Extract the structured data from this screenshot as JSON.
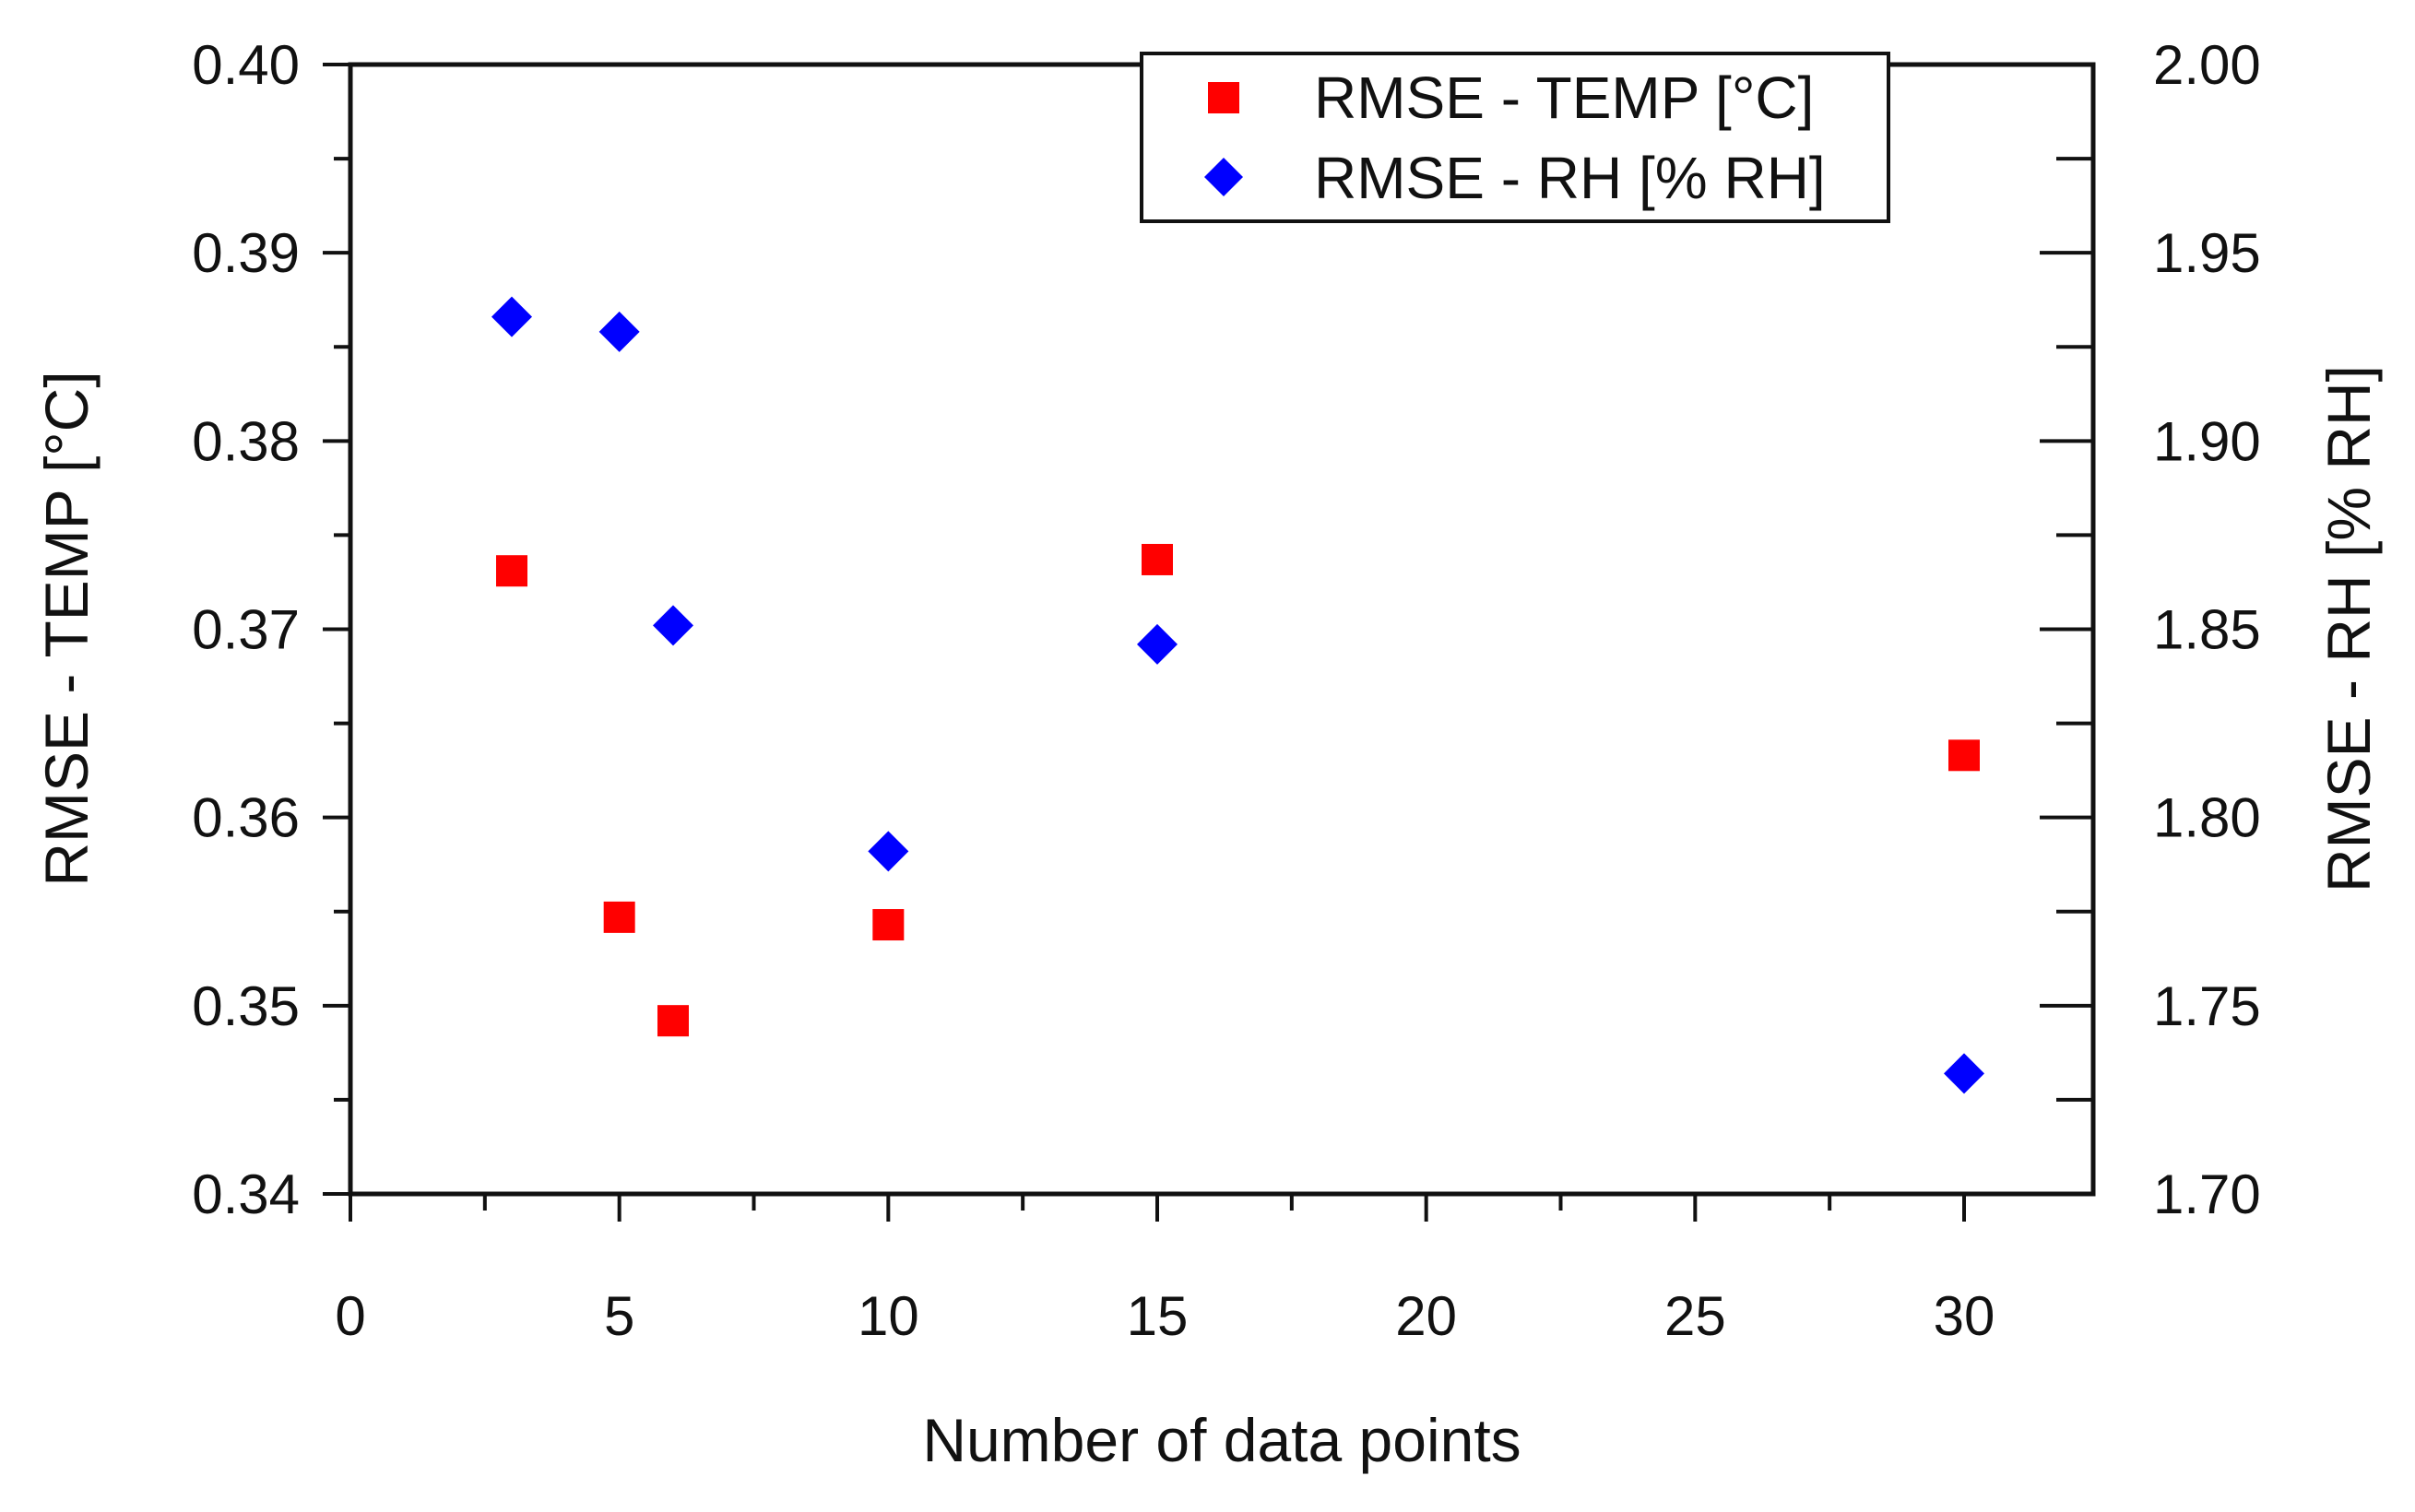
{
  "chart_data": {
    "type": "scatter",
    "xlabel": "Number of data points",
    "ylabel_left": "RMSE - TEMP [°C]",
    "ylabel_right": "RMSE - RH [% RH]",
    "x_range": [
      0,
      32.4
    ],
    "y_left_range": [
      0.34,
      0.4
    ],
    "y_right_range": [
      1.7,
      2.0
    ],
    "x_ticks": [
      "0",
      "5",
      "10",
      "15",
      "20",
      "25",
      "30"
    ],
    "y_left_ticks": [
      "0.34",
      "0.35",
      "0.36",
      "0.37",
      "0.38",
      "0.39",
      "0.40"
    ],
    "y_right_ticks": [
      "1.70",
      "1.75",
      "1.80",
      "1.85",
      "1.90",
      "1.95",
      "2.00"
    ],
    "grid": false,
    "legend_position": "top-right",
    "series": [
      {
        "name": "RMSE - TEMP [°C]",
        "axis": "left",
        "marker": "square",
        "color": "#ff0000",
        "x": [
          3,
          5,
          6,
          10,
          15,
          30
        ],
        "y": [
          0.3731,
          0.3547,
          0.3492,
          0.3543,
          0.3737,
          0.3633
        ]
      },
      {
        "name": "RMSE - RH [% RH]",
        "axis": "right",
        "marker": "diamond",
        "color": "#0000ff",
        "x": [
          3,
          5,
          6,
          10,
          15,
          30
        ],
        "y": [
          1.933,
          1.929,
          1.851,
          1.791,
          1.846,
          1.732
        ]
      }
    ]
  }
}
